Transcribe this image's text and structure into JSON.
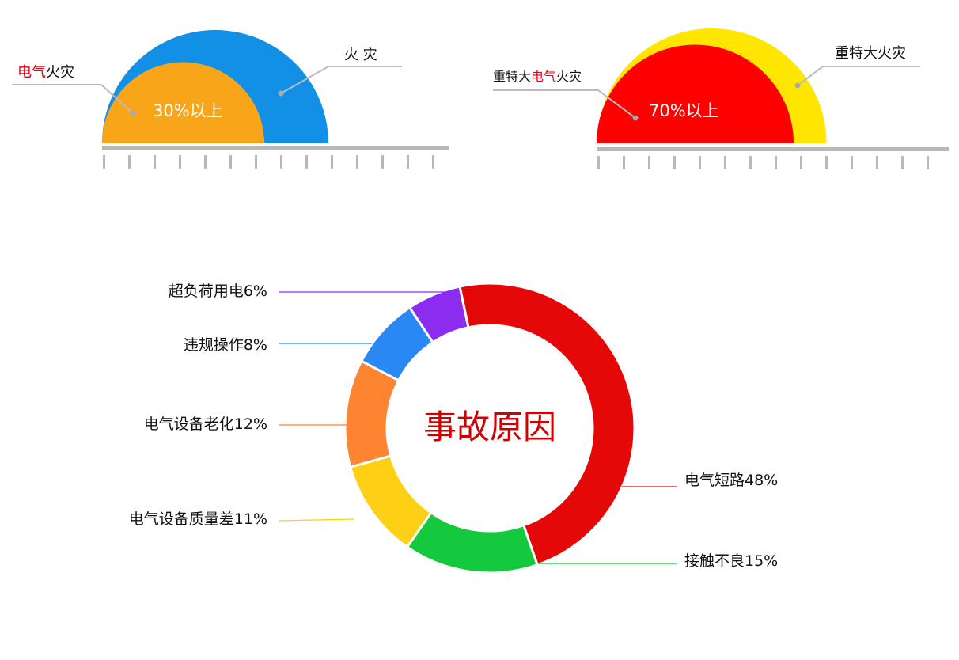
{
  "gauges": [
    {
      "outer_label": "火 灾",
      "inner_label_parts": [
        "",
        "电气",
        "火灾"
      ],
      "inner_percent_text": "30%以上",
      "inner_share": 0.3,
      "outer_color": "#1190e6",
      "inner_color": "#f9a51a"
    },
    {
      "outer_label": "重特大火灾",
      "inner_label_parts": [
        "重特大",
        "电气",
        "火灾"
      ],
      "inner_percent_text": "70%以上",
      "inner_share": 0.7,
      "outer_color": "#ffe600",
      "inner_color": "#ff0000"
    }
  ],
  "chart_data": {
    "type": "pie",
    "variant": "donut",
    "title": "事故原因",
    "categories": [
      "电气短路",
      "接触不良",
      "电气设备质量差",
      "电气设备老化",
      "违规操作",
      "超负荷用电"
    ],
    "values": [
      48,
      15,
      11,
      12,
      8,
      6
    ],
    "unit": "%",
    "labels": [
      "电气短路48%",
      "接触不良15%",
      "电气设备质量差11%",
      "电气设备老化12%",
      "违规操作8%",
      "超负荷用电6%"
    ],
    "colors": [
      "#e50808",
      "#14c93e",
      "#fdd015",
      "#fd8431",
      "#2a88f5",
      "#8b2cf0"
    ],
    "legend": "none"
  }
}
